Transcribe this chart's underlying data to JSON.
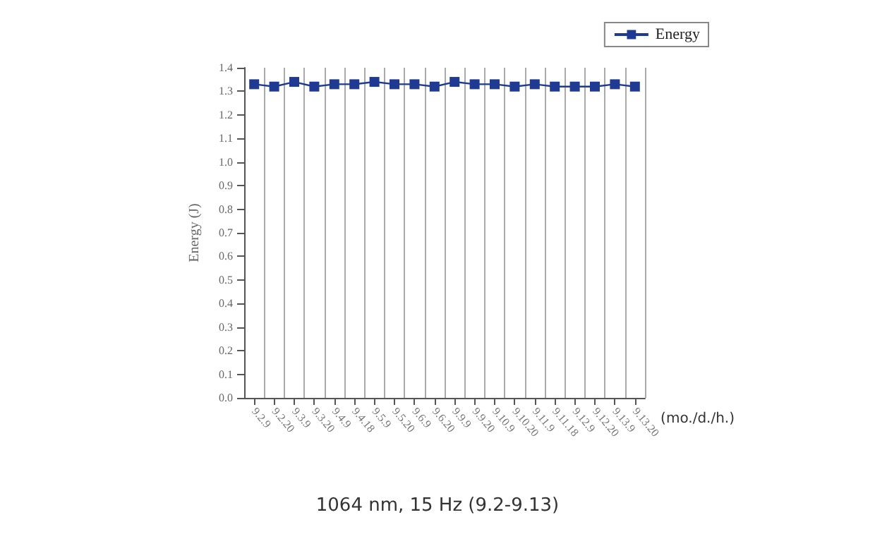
{
  "chart_data": {
    "type": "line",
    "categories": [
      "9.2.9",
      "9.2.20",
      "9.3.9",
      "9.3.20",
      "9.4.9",
      "9.4.18",
      "9.5.9",
      "9.5.20",
      "9.6.9",
      "9.6.20",
      "9.9.9",
      "9.9.20",
      "9.10.9",
      "9.10.20",
      "9.11.9",
      "9.11.18",
      "9.12.9",
      "9.12.20",
      "9.13.9",
      "9.13.20"
    ],
    "series": [
      {
        "name": "Energy",
        "color": "#1f3a93",
        "values": [
          1.33,
          1.32,
          1.34,
          1.32,
          1.33,
          1.33,
          1.34,
          1.33,
          1.33,
          1.32,
          1.34,
          1.33,
          1.33,
          1.32,
          1.33,
          1.32,
          1.32,
          1.32,
          1.33,
          1.32
        ]
      }
    ],
    "ylabel": "Energy (J)",
    "xlabel": "(mo./d./h.)",
    "ylim": [
      0,
      1.4
    ],
    "yticks": [
      {
        "value": 0,
        "label": "0.0"
      },
      0.1,
      0.2,
      0.3,
      0.4,
      0.5,
      0.6,
      0.7,
      0.8,
      0.9,
      {
        "value": 1,
        "label": "1.0"
      },
      1.1,
      1.2,
      1.3,
      1.4
    ],
    "annotations": [
      "1064 nm, 15 Hz (9.2-9.13)"
    ],
    "grid": "x",
    "legend": "top right",
    "marker": "square",
    "line_style": "solid"
  }
}
